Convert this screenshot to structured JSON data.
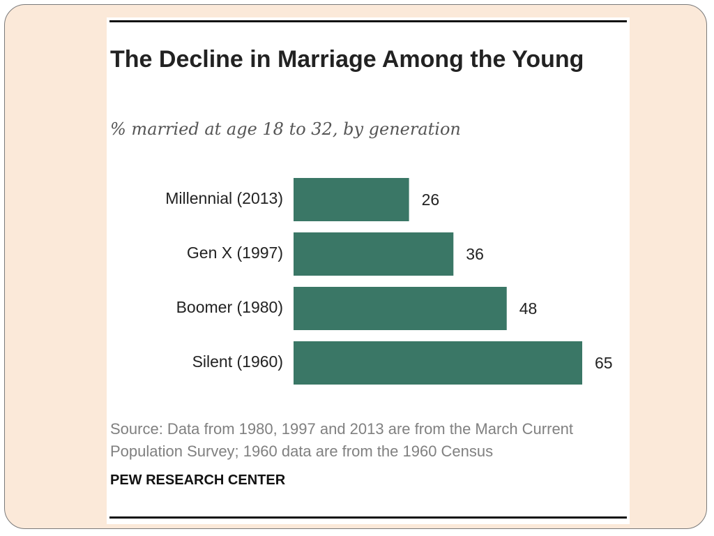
{
  "chart_data": {
    "type": "bar",
    "orientation": "horizontal",
    "title": "The Decline in Marriage Among the Young",
    "subtitle": "% married at age 18 to 32, by generation",
    "categories": [
      "Millennial (2013)",
      "Gen X (1997)",
      "Boomer (1980)",
      "Silent (1960)"
    ],
    "values": [
      26,
      36,
      48,
      65
    ],
    "xlabel": "",
    "ylabel": "",
    "xlim": [
      0,
      65
    ],
    "bar_color": "#3a7766",
    "grid": false,
    "source": "Source: Data from 1980, 1997 and 2013 are from the March Current Population Survey; 1960 data are from the 1960 Census",
    "brand": "PEW RESEARCH CENTER"
  },
  "colors": {
    "slide_background": "#fbe9d9",
    "figure_background": "#ffffff",
    "bar": "#3a7766"
  }
}
